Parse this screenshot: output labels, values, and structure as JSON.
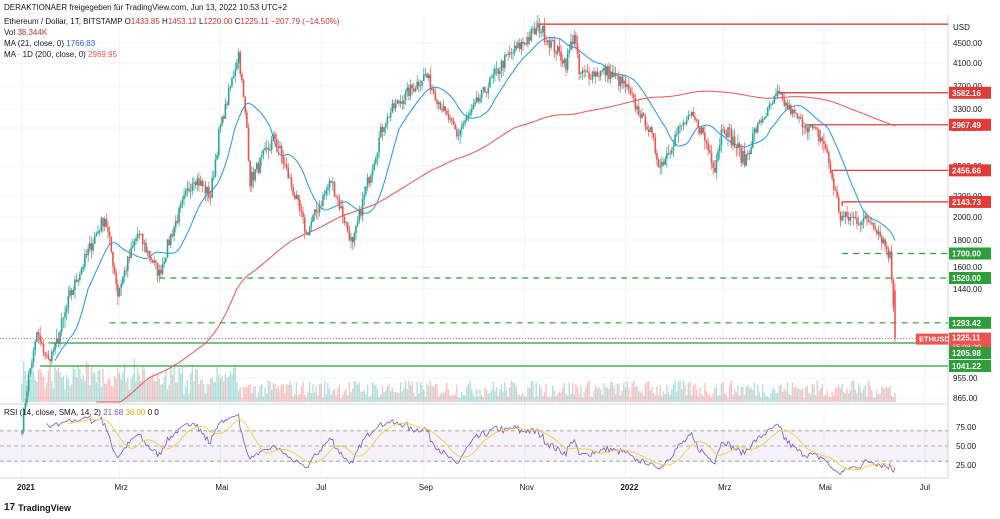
{
  "header": {
    "publisher_line": "DERAKTIONAER freigegeben für TradingView.com, Jun 13, 2022 10:53 UTC+2",
    "symbol_line": "Ethereum / Dollar, 1T, BITSTAMP",
    "ohlc": {
      "o_label": "O",
      "o": "1433.85",
      "h_label": "H",
      "h": "1453.12",
      "l_label": "L",
      "l": "1220.00",
      "c_label": "C",
      "c": "1225.11",
      "change": "−207.79 (−14.50%)"
    },
    "vol_label": "Vol",
    "vol": "38.344K",
    "ma21_label": "MA (21, close, 0)",
    "ma21": "1766.83",
    "ma200_label": "MA · 1D (200, close, 0)",
    "ma200": "2969.95"
  },
  "rsi_header": {
    "label": "RSI (14, close, SMA, 14, 2)",
    "v1": "21.68",
    "v2": "36.00",
    "v3": "0",
    "v4": "0"
  },
  "footer": {
    "brand": "TradingView",
    "logo": "17"
  },
  "colors": {
    "up": "#26a69a",
    "down": "#ef5350",
    "ma21": "#2196f3",
    "ma200": "#ef5350",
    "resistance": "#d32f2f",
    "support": "#2e9e3a",
    "rsi": "#7e57c2",
    "rsi_ma": "#f7c948"
  },
  "chart_data": {
    "type": "candlestick",
    "currency_label": "USD",
    "price_ticks": [
      "4500.00",
      "4100.00",
      "3700.00",
      "3300.00",
      "2900.00",
      "2500.00",
      "2200.00",
      "2000.00",
      "1800.00",
      "1600.00",
      "1440.00",
      "1205.98",
      "955.00",
      "865.00"
    ],
    "time_ticks": [
      "2021",
      "Mrz",
      "Mai",
      "Jul",
      "Sep",
      "Nov",
      "2022",
      "Mrz",
      "Mai",
      "Jul"
    ],
    "rsi_ticks": [
      "75.00",
      "50.00",
      "25.00"
    ],
    "last_price": {
      "symbol": "ETHUSD",
      "price": "1225.11",
      "countdown": "15:06:20",
      "value": 1225.11
    },
    "resistance_levels": [
      {
        "label": "3582.16",
        "value": 3582.16,
        "from": "2022-04-03"
      },
      {
        "label": "2967.49",
        "value": 2967.49,
        "from": "2022-04-20"
      },
      {
        "label": "2456.66",
        "value": 2456.66,
        "from": "2022-05-06"
      },
      {
        "label": "2143.73",
        "value": 2143.73,
        "from": "2022-05-12"
      },
      {
        "label": "",
        "value": 4860,
        "from": "2021-11-10"
      }
    ],
    "support_dashed": [
      {
        "label": "1700.00",
        "value": 1700,
        "from": "2022-05-12"
      },
      {
        "label": "1520.00",
        "value": 1520,
        "from": "2021-03-25"
      },
      {
        "label": "1293.42",
        "value": 1293.42,
        "from": "2021-02-23"
      }
    ],
    "support_solid": [
      {
        "label": "",
        "value": 1205.98,
        "from": "2021-01-17"
      },
      {
        "label": "1041.22",
        "value": 1041.22,
        "from": "2021-01-12"
      }
    ],
    "anchors": [
      [
        "2021-01-01",
        740
      ],
      [
        "2021-01-10",
        1250
      ],
      [
        "2021-01-17",
        1080
      ],
      [
        "2021-02-01",
        1450
      ],
      [
        "2021-02-20",
        2000
      ],
      [
        "2021-02-28",
        1420
      ],
      [
        "2021-03-12",
        1850
      ],
      [
        "2021-03-25",
        1550
      ],
      [
        "2021-04-15",
        2400
      ],
      [
        "2021-04-25",
        2200
      ],
      [
        "2021-05-12",
        4300
      ],
      [
        "2021-05-19",
        2350
      ],
      [
        "2021-06-03",
        2800
      ],
      [
        "2021-06-22",
        1850
      ],
      [
        "2021-07-07",
        2350
      ],
      [
        "2021-07-20",
        1750
      ],
      [
        "2021-08-13",
        3300
      ],
      [
        "2021-09-02",
        3900
      ],
      [
        "2021-09-21",
        2800
      ],
      [
        "2021-10-03",
        3400
      ],
      [
        "2021-10-21",
        4200
      ],
      [
        "2021-11-10",
        4800
      ],
      [
        "2021-11-26",
        4100
      ],
      [
        "2021-12-01",
        4700
      ],
      [
        "2021-12-04",
        3900
      ],
      [
        "2021-12-21",
        3950
      ],
      [
        "2022-01-01",
        3700
      ],
      [
        "2022-01-22",
        2500
      ],
      [
        "2022-02-10",
        3150
      ],
      [
        "2022-02-24",
        2500
      ],
      [
        "2022-03-01",
        2950
      ],
      [
        "2022-03-14",
        2550
      ],
      [
        "2022-04-03",
        3550
      ],
      [
        "2022-04-18",
        3000
      ],
      [
        "2022-05-01",
        2750
      ],
      [
        "2022-05-11",
        2000
      ],
      [
        "2022-05-31",
        1960
      ],
      [
        "2022-06-10",
        1680
      ],
      [
        "2022-06-13",
        1225
      ]
    ]
  }
}
